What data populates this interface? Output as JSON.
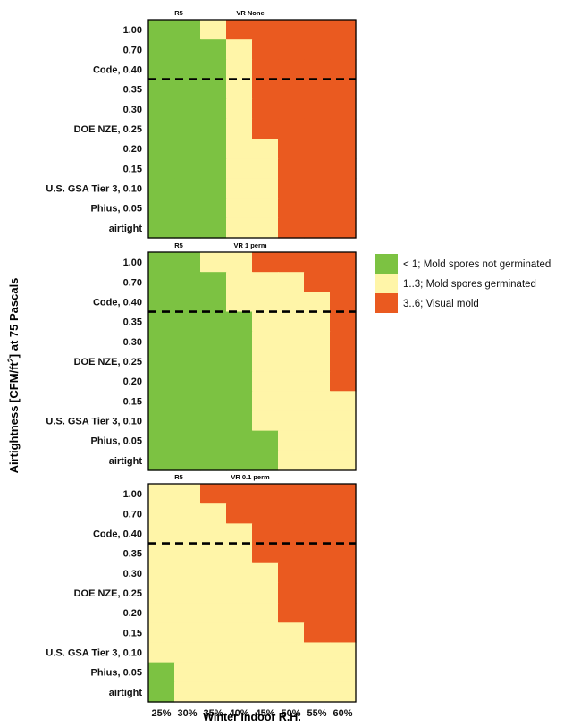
{
  "colors": {
    "green": "#7cc242",
    "yellow": "#fff5a8",
    "orange": "#ea5a20",
    "threshold_line": "#000000",
    "frame": "#000000"
  },
  "ylabel_parts": [
    "Airtightness [CFM/ft",
    "2",
    "] at 75 Pascals"
  ],
  "legend": [
    {
      "label": "< 1; Mold spores not germinated",
      "color_key": "green"
    },
    {
      "label": "1..3; Mold spores germinated",
      "color_key": "yellow"
    },
    {
      "label": "3..6; Visual mold",
      "color_key": "orange"
    }
  ],
  "chart_data": {
    "type": "heatmap",
    "title": "",
    "xlabel": "Winter Indoor R.H.",
    "x_categories": [
      "25%",
      "30%",
      "35%",
      "40%",
      "45%",
      "50%",
      "55%",
      "60%"
    ],
    "y_categories": [
      "1.00",
      "0.70",
      "Code, 0.40",
      "0.35",
      "0.30",
      "DOE NZE, 0.25",
      "0.20",
      "0.15",
      "U.S. GSA Tier 3, 0.10",
      "Phius, 0.05",
      "airtight"
    ],
    "value_bands": [
      "< 1",
      "1..3",
      "3..6"
    ],
    "threshold_line_between": [
      "Code, 0.40",
      "0.35"
    ],
    "panels": [
      {
        "label_left": "R5",
        "label_center": "VR None",
        "grid": [
          [
            "G",
            "G",
            "Y",
            "O",
            "O",
            "O",
            "O",
            "O"
          ],
          [
            "G",
            "G",
            "G",
            "Y",
            "O",
            "O",
            "O",
            "O"
          ],
          [
            "G",
            "G",
            "G",
            "Y",
            "O",
            "O",
            "O",
            "O"
          ],
          [
            "G",
            "G",
            "G",
            "Y",
            "O",
            "O",
            "O",
            "O"
          ],
          [
            "G",
            "G",
            "G",
            "Y",
            "O",
            "O",
            "O",
            "O"
          ],
          [
            "G",
            "G",
            "G",
            "Y",
            "O",
            "O",
            "O",
            "O"
          ],
          [
            "G",
            "G",
            "G",
            "Y",
            "Y",
            "O",
            "O",
            "O"
          ],
          [
            "G",
            "G",
            "G",
            "Y",
            "Y",
            "O",
            "O",
            "O"
          ],
          [
            "G",
            "G",
            "G",
            "Y",
            "Y",
            "O",
            "O",
            "O"
          ],
          [
            "G",
            "G",
            "G",
            "Y",
            "Y",
            "O",
            "O",
            "O"
          ],
          [
            "G",
            "G",
            "G",
            "Y",
            "Y",
            "O",
            "O",
            "O"
          ]
        ]
      },
      {
        "label_left": "R5",
        "label_center": "VR 1 perm",
        "grid": [
          [
            "G",
            "G",
            "Y",
            "Y",
            "O",
            "O",
            "O",
            "O"
          ],
          [
            "G",
            "G",
            "G",
            "Y",
            "Y",
            "Y",
            "O",
            "O"
          ],
          [
            "G",
            "G",
            "G",
            "Y",
            "Y",
            "Y",
            "Y",
            "O"
          ],
          [
            "G",
            "G",
            "G",
            "G",
            "Y",
            "Y",
            "Y",
            "O"
          ],
          [
            "G",
            "G",
            "G",
            "G",
            "Y",
            "Y",
            "Y",
            "O"
          ],
          [
            "G",
            "G",
            "G",
            "G",
            "Y",
            "Y",
            "Y",
            "O"
          ],
          [
            "G",
            "G",
            "G",
            "G",
            "Y",
            "Y",
            "Y",
            "O"
          ],
          [
            "G",
            "G",
            "G",
            "G",
            "Y",
            "Y",
            "Y",
            "Y"
          ],
          [
            "G",
            "G",
            "G",
            "G",
            "Y",
            "Y",
            "Y",
            "Y"
          ],
          [
            "G",
            "G",
            "G",
            "G",
            "G",
            "Y",
            "Y",
            "Y"
          ],
          [
            "G",
            "G",
            "G",
            "G",
            "G",
            "Y",
            "Y",
            "Y"
          ]
        ]
      },
      {
        "label_left": "R5",
        "label_center": "VR 0.1 perm",
        "grid": [
          [
            "Y",
            "Y",
            "O",
            "O",
            "O",
            "O",
            "O",
            "O"
          ],
          [
            "Y",
            "Y",
            "Y",
            "O",
            "O",
            "O",
            "O",
            "O"
          ],
          [
            "Y",
            "Y",
            "Y",
            "Y",
            "O",
            "O",
            "O",
            "O"
          ],
          [
            "Y",
            "Y",
            "Y",
            "Y",
            "O",
            "O",
            "O",
            "O"
          ],
          [
            "Y",
            "Y",
            "Y",
            "Y",
            "Y",
            "O",
            "O",
            "O"
          ],
          [
            "Y",
            "Y",
            "Y",
            "Y",
            "Y",
            "O",
            "O",
            "O"
          ],
          [
            "Y",
            "Y",
            "Y",
            "Y",
            "Y",
            "O",
            "O",
            "O"
          ],
          [
            "Y",
            "Y",
            "Y",
            "Y",
            "Y",
            "Y",
            "O",
            "O"
          ],
          [
            "Y",
            "Y",
            "Y",
            "Y",
            "Y",
            "Y",
            "Y",
            "Y"
          ],
          [
            "G",
            "Y",
            "Y",
            "Y",
            "Y",
            "Y",
            "Y",
            "Y"
          ],
          [
            "G",
            "Y",
            "Y",
            "Y",
            "Y",
            "Y",
            "Y",
            "Y"
          ]
        ]
      }
    ]
  }
}
